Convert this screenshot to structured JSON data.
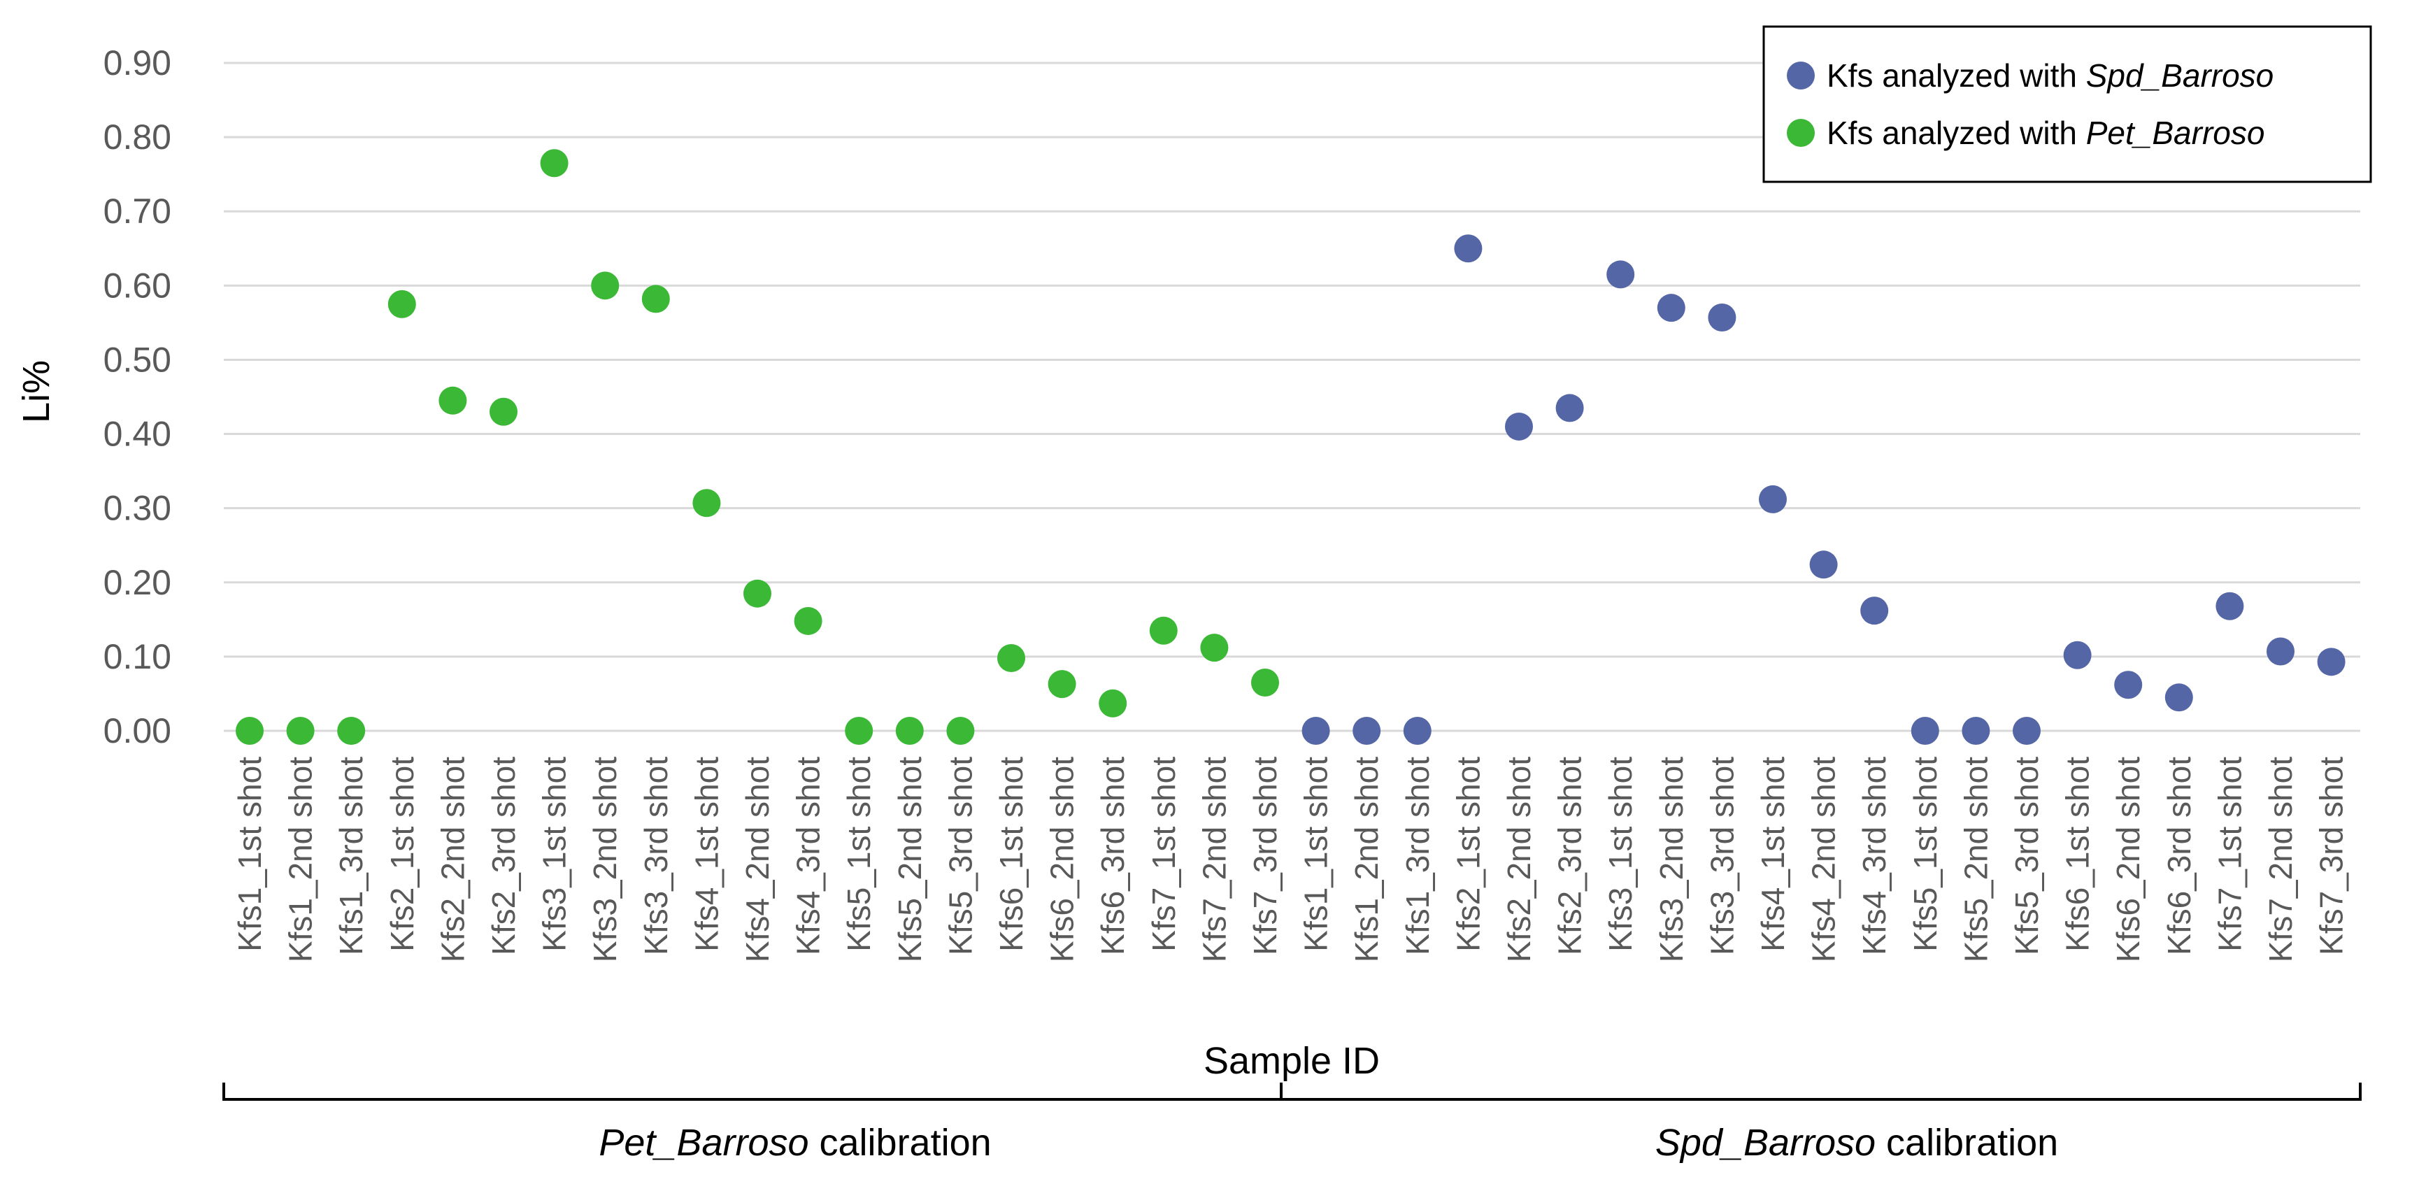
{
  "chart_data": {
    "type": "scatter",
    "title": "",
    "xlabel": "Sample ID",
    "ylabel": "Li%",
    "ylim": [
      0,
      0.9
    ],
    "yticks": [
      "0.00",
      "0.10",
      "0.20",
      "0.30",
      "0.40",
      "0.50",
      "0.60",
      "0.70",
      "0.80",
      "0.90"
    ],
    "grid": true,
    "legend_position": "top-right",
    "categories": [
      "Kfs1_1st shot",
      "Kfs1_2nd shot",
      "Kfs1_3rd shot",
      "Kfs2_1st shot",
      "Kfs2_2nd shot",
      "Kfs2_3rd shot",
      "Kfs3_1st shot",
      "Kfs3_2nd shot",
      "Kfs3_3rd shot",
      "Kfs4_1st shot",
      "Kfs4_2nd shot",
      "Kfs4_3rd shot",
      "Kfs5_1st shot",
      "Kfs5_2nd shot",
      "Kfs5_3rd shot",
      "Kfs6_1st shot",
      "Kfs6_2nd shot",
      "Kfs6_3rd shot",
      "Kfs7_1st shot",
      "Kfs7_2nd shot",
      "Kfs7_3rd shot",
      "Kfs1_1st shot",
      "Kfs1_2nd shot",
      "Kfs1_3rd shot",
      "Kfs2_1st shot",
      "Kfs2_2nd shot",
      "Kfs2_3rd shot",
      "Kfs3_1st shot",
      "Kfs3_2nd shot",
      "Kfs3_3rd shot",
      "Kfs4_1st shot",
      "Kfs4_2nd shot",
      "Kfs4_3rd shot",
      "Kfs5_1st shot",
      "Kfs5_2nd shot",
      "Kfs5_3rd shot",
      "Kfs6_1st shot",
      "Kfs6_2nd shot",
      "Kfs6_3rd shot",
      "Kfs7_1st shot",
      "Kfs7_2nd shot",
      "Kfs7_3rd shot"
    ],
    "series": [
      {
        "name": "Kfs analyzed with Spd_Barroso",
        "legend_prefix": "Kfs analyzed with ",
        "legend_italic": "Spd_Barroso",
        "color": "#5566a6",
        "start_index": 21,
        "values": [
          0.0,
          0.0,
          0.0,
          0.65,
          0.41,
          0.435,
          0.615,
          0.57,
          0.557,
          0.312,
          0.224,
          0.162,
          0.0,
          0.0,
          0.0,
          0.102,
          0.062,
          0.045,
          0.168,
          0.107,
          0.093
        ]
      },
      {
        "name": "Kfs analyzed with Pet_Barroso",
        "legend_prefix": "Kfs analyzed with ",
        "legend_italic": "Pet_Barroso",
        "color": "#3bb836",
        "start_index": 0,
        "values": [
          0.0,
          0.0,
          0.0,
          0.575,
          0.445,
          0.43,
          0.765,
          0.6,
          0.582,
          0.307,
          0.185,
          0.148,
          0.0,
          0.0,
          0.0,
          0.098,
          0.063,
          0.037,
          0.135,
          0.112,
          0.065
        ]
      }
    ],
    "groups": [
      {
        "italic": "Pet_Barroso",
        "suffix": " calibration",
        "from": 0,
        "to": 20
      },
      {
        "italic": "Spd_Barroso",
        "suffix": " calibration",
        "from": 21,
        "to": 41
      }
    ]
  }
}
